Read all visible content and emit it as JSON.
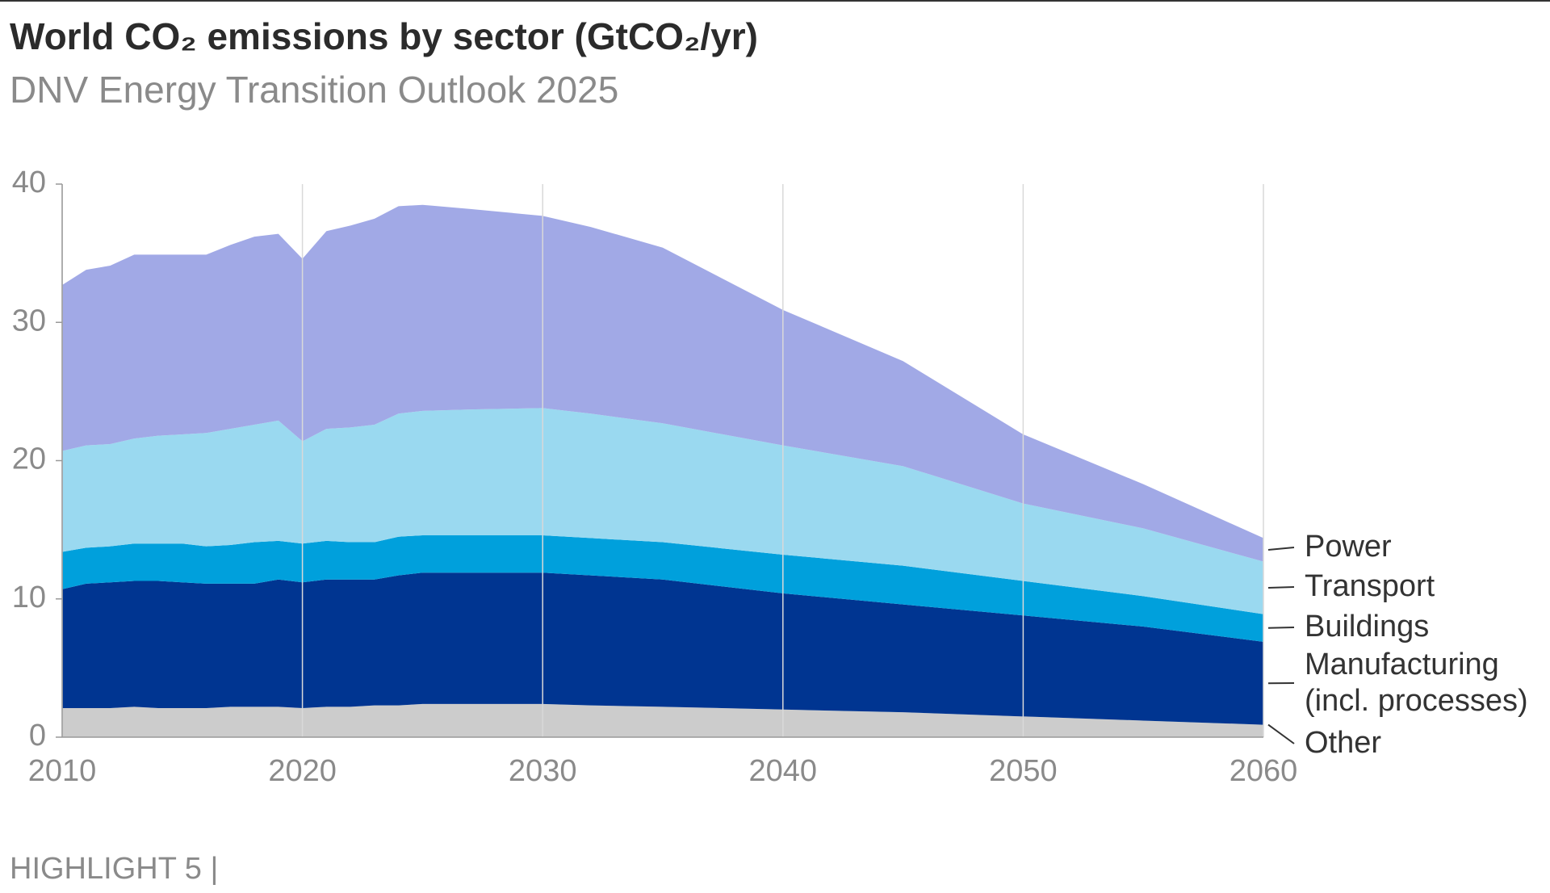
{
  "chart_data": {
    "type": "stacked_area",
    "title": "World CO₂ emissions by sector (GtCO₂/yr)",
    "subtitle": "DNV Energy Transition Outlook 2025",
    "x": [
      2010,
      2011,
      2012,
      2013,
      2014,
      2015,
      2016,
      2017,
      2018,
      2019,
      2020,
      2021,
      2022,
      2023,
      2024,
      2025,
      2027,
      2030,
      2032,
      2035,
      2040,
      2045,
      2050,
      2055,
      2060
    ],
    "series": [
      {
        "name": "Other",
        "color": "#cccccc",
        "values": [
          2.1,
          2.1,
          2.1,
          2.2,
          2.1,
          2.1,
          2.1,
          2.2,
          2.2,
          2.2,
          2.1,
          2.2,
          2.2,
          2.3,
          2.3,
          2.4,
          2.4,
          2.4,
          2.3,
          2.2,
          2.0,
          1.8,
          1.5,
          1.2,
          0.9
        ]
      },
      {
        "name": "Manufacturing\n(incl. processes)",
        "color": "#003591",
        "values": [
          8.6,
          9.0,
          9.1,
          9.1,
          9.2,
          9.1,
          9.0,
          8.9,
          8.9,
          9.2,
          9.1,
          9.2,
          9.2,
          9.1,
          9.4,
          9.5,
          9.5,
          9.5,
          9.4,
          9.2,
          8.4,
          7.8,
          7.3,
          6.8,
          6.0
        ]
      },
      {
        "name": "Buildings",
        "color": "#00a0dc",
        "values": [
          2.7,
          2.6,
          2.6,
          2.7,
          2.7,
          2.8,
          2.7,
          2.8,
          3.0,
          2.8,
          2.8,
          2.8,
          2.7,
          2.7,
          2.8,
          2.7,
          2.7,
          2.7,
          2.7,
          2.7,
          2.8,
          2.8,
          2.5,
          2.2,
          2.0
        ]
      },
      {
        "name": "Transport",
        "color": "#9ad9f0",
        "values": [
          7.3,
          7.4,
          7.4,
          7.6,
          7.8,
          7.9,
          8.2,
          8.4,
          8.5,
          8.7,
          7.4,
          8.1,
          8.3,
          8.5,
          8.9,
          9.0,
          9.1,
          9.2,
          9.0,
          8.6,
          7.9,
          7.2,
          5.6,
          4.9,
          3.8
        ]
      },
      {
        "name": "Power",
        "color": "#a1a9e6",
        "values": [
          12.0,
          12.7,
          12.9,
          13.3,
          13.1,
          13.0,
          12.9,
          13.3,
          13.6,
          13.5,
          13.2,
          14.3,
          14.6,
          14.9,
          15.0,
          14.9,
          14.5,
          13.9,
          13.5,
          12.7,
          9.8,
          7.6,
          5.0,
          3.2,
          1.7
        ]
      }
    ],
    "xlim": [
      2010,
      2060
    ],
    "xticks": [
      2010,
      2020,
      2030,
      2040,
      2050,
      2060
    ],
    "ylim": [
      0,
      40
    ],
    "yticks": [
      0,
      10,
      20,
      30,
      40
    ],
    "grid": "x"
  },
  "footer": "HIGHLIGHT 5 |"
}
